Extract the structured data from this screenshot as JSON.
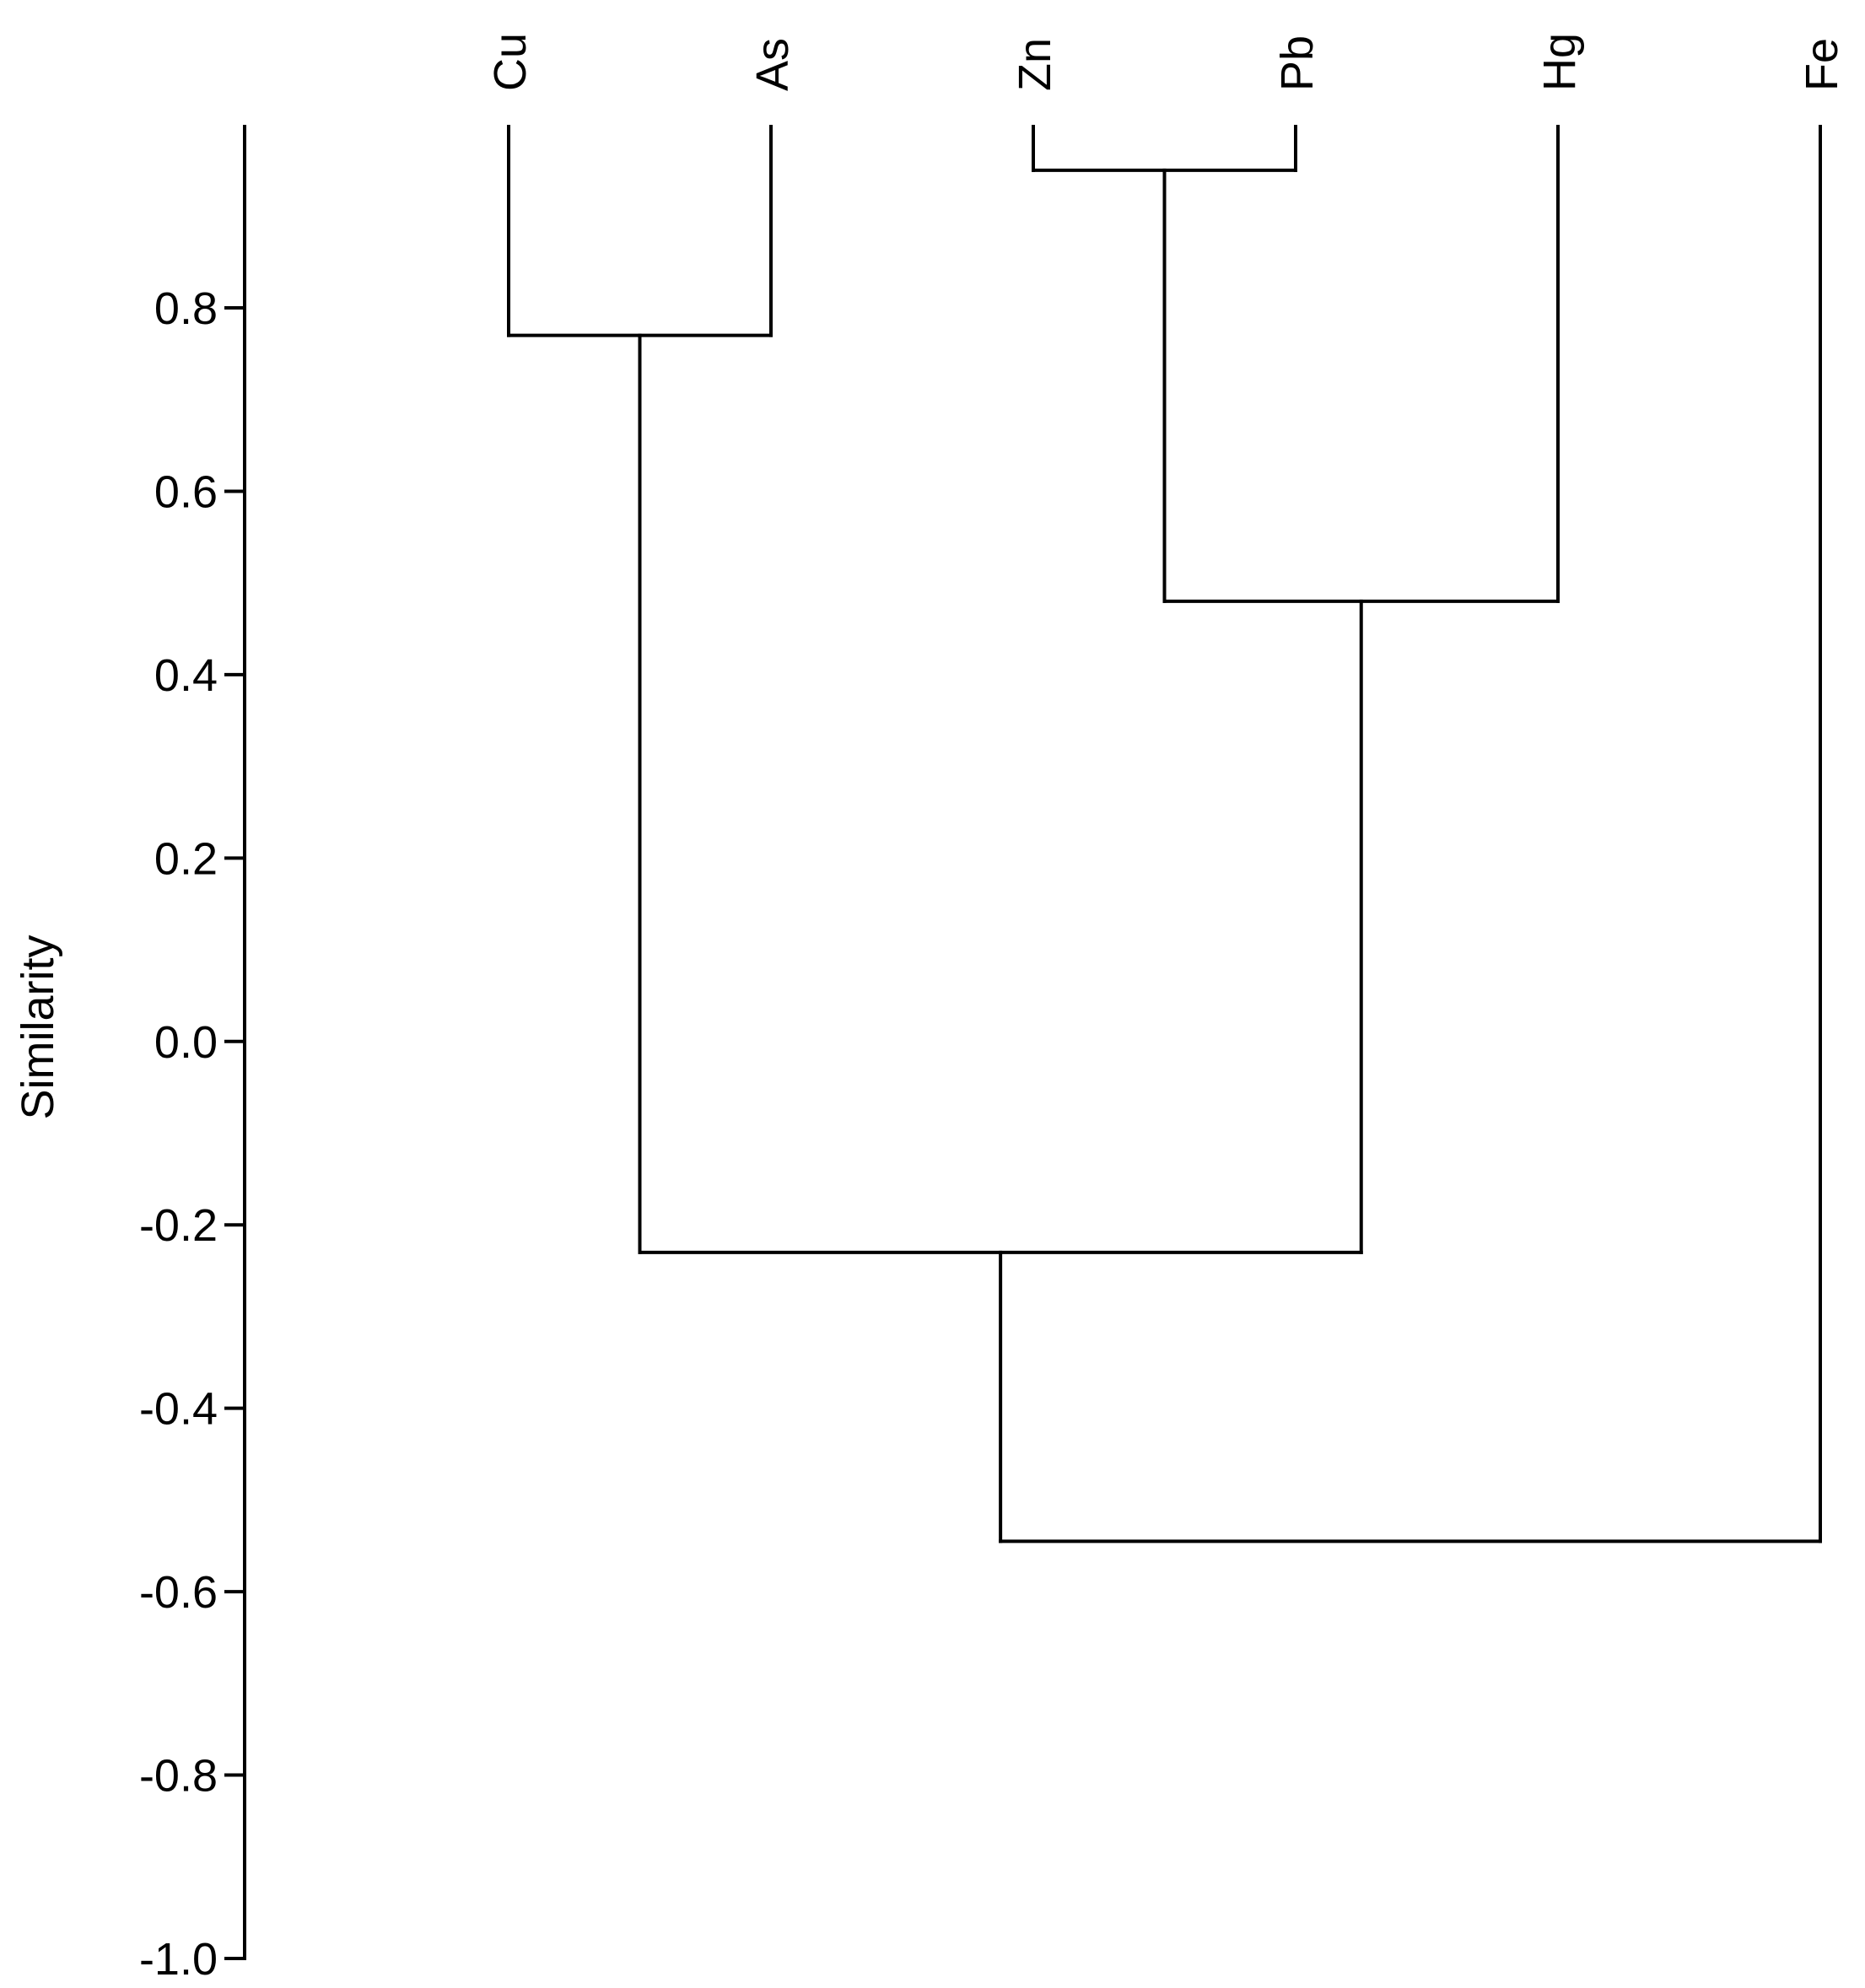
{
  "chart_data": {
    "type": "dendrogram",
    "title": "",
    "xlabel": "",
    "ylabel": "Similarity",
    "ylim": [
      -1.0,
      1.0
    ],
    "yticks": [
      0.8,
      0.6,
      0.4,
      0.2,
      0.0,
      -0.2,
      -0.4,
      -0.6,
      -0.8,
      -1.0
    ],
    "ytick_labels": [
      "0.8",
      "0.6",
      "0.4",
      "0.2",
      "0.0",
      "-0.2",
      "-0.4",
      "-0.6",
      "-0.8",
      "-1.0"
    ],
    "leaves": [
      "Cu",
      "As",
      "Zn",
      "Pb",
      "Hg",
      "Fe"
    ],
    "merges": [
      {
        "left": "Zn",
        "right": "Pb",
        "similarity": 0.95
      },
      {
        "left": "Cu",
        "right": "As",
        "similarity": 0.77
      },
      {
        "left": "Zn+Pb",
        "right": "Hg",
        "similarity": 0.48
      },
      {
        "left": "Cu+As",
        "right": "Zn+Pb+Hg",
        "similarity": -0.23
      },
      {
        "left": "Cu+As+Zn+Pb+Hg",
        "right": "Fe",
        "similarity": -0.545
      }
    ],
    "leaf_top": 0.99,
    "grid": false,
    "line_color": "#000000"
  }
}
